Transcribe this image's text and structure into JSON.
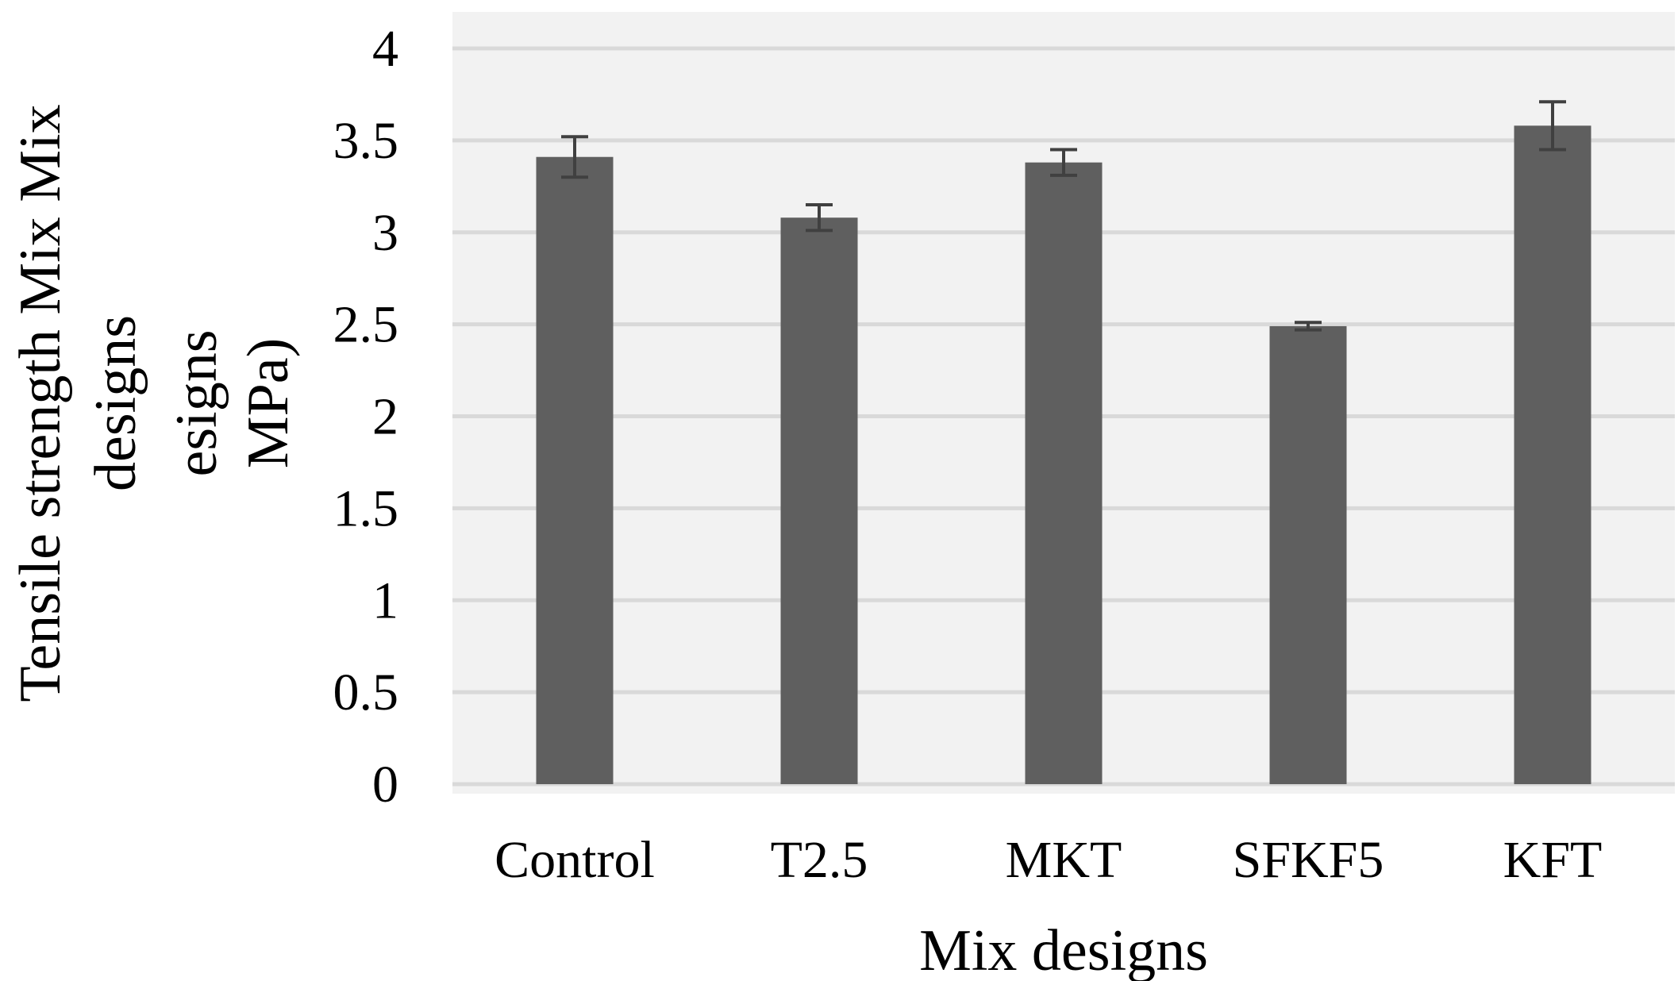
{
  "chart_data": {
    "type": "bar",
    "title": "",
    "xlabel": "Mix designs",
    "ylabel_lines": [
      "Tensile strength Mix Mix",
      "designs",
      "esigns",
      "MPa)"
    ],
    "categories": [
      "Control",
      "T2.5",
      "MKT",
      "SFKF5",
      "KFT"
    ],
    "values": [
      3.41,
      3.08,
      3.38,
      2.49,
      3.58
    ],
    "error": [
      0.11,
      0.07,
      0.07,
      0.02,
      0.13
    ],
    "ylim": [
      0,
      4
    ],
    "yticks": [
      0,
      0.5,
      1,
      1.5,
      2,
      2.5,
      3,
      3.5,
      4
    ],
    "ytick_labels": [
      "0",
      "0.5",
      "1",
      "1.5",
      "2",
      "2.5",
      "3",
      "3.5",
      "4"
    ],
    "grid": true,
    "legend": "none",
    "colors": {
      "bar": "#5f5f5f",
      "error_bar": "#404040",
      "plot_background": "#f2f2f2",
      "gridline": "#d9d9d9"
    }
  }
}
